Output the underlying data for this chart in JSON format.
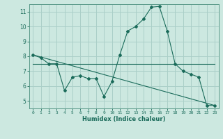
{
  "xlabel": "Humidex (Indice chaleur)",
  "bg_color": "#cce8e0",
  "grid_color": "#aacfc8",
  "line_color": "#1a6b5a",
  "spine_color": "#5a9a8a",
  "xlim": [
    -0.5,
    23.5
  ],
  "ylim": [
    4.5,
    11.5
  ],
  "yticks": [
    5,
    6,
    7,
    8,
    9,
    10,
    11
  ],
  "xticks": [
    0,
    1,
    2,
    3,
    4,
    5,
    6,
    7,
    8,
    9,
    10,
    11,
    12,
    13,
    14,
    15,
    16,
    17,
    18,
    19,
    20,
    21,
    22,
    23
  ],
  "line1_x": [
    0,
    1,
    2,
    3,
    4,
    5,
    6,
    7,
    8,
    9,
    10,
    11,
    12,
    13,
    14,
    15,
    16,
    17,
    18,
    19,
    20,
    21,
    22,
    23
  ],
  "line1_y": [
    8.1,
    7.9,
    7.5,
    7.5,
    5.7,
    6.6,
    6.7,
    6.5,
    6.5,
    5.3,
    6.3,
    8.1,
    9.7,
    10.0,
    10.5,
    11.3,
    11.35,
    9.7,
    7.5,
    7.0,
    6.8,
    6.6,
    4.7,
    4.7
  ],
  "line2_x": [
    0,
    23
  ],
  "line2_y": [
    7.5,
    7.5
  ],
  "line3_x": [
    0,
    23
  ],
  "line3_y": [
    8.1,
    4.7
  ]
}
